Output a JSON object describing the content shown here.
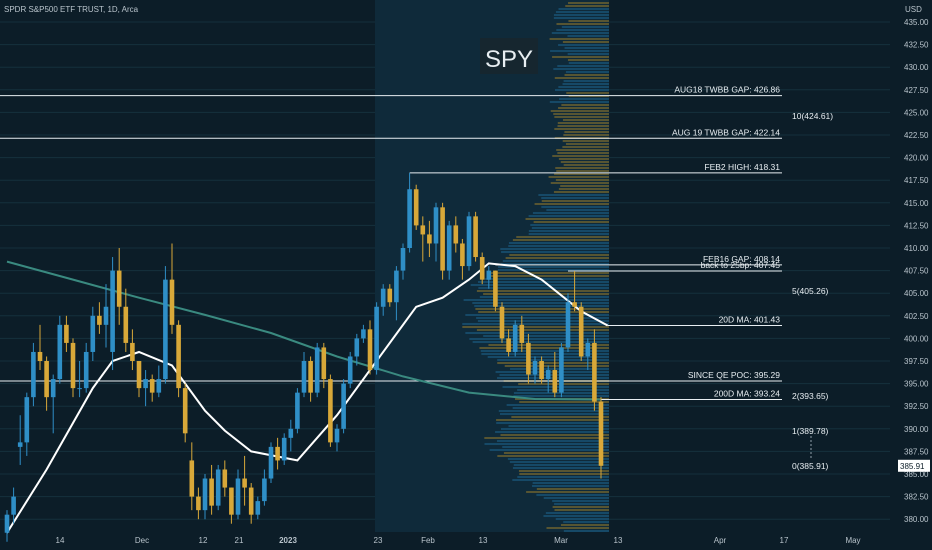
{
  "header": {
    "title": "SPDR S&P500 ETF TRUST, 1D, Arca"
  },
  "watermark": "SPY",
  "chart_data": {
    "type": "candlestick",
    "title": "SPDR S&P500 ETF TRUST, 1D, Arca",
    "currency": "USD",
    "ylim": [
      378,
      436
    ],
    "y_ticks": [
      "435.00",
      "432.50",
      "430.00",
      "427.50",
      "425.00",
      "422.50",
      "420.00",
      "417.50",
      "415.00",
      "412.50",
      "410.00",
      "407.50",
      "405.00",
      "402.50",
      "400.00",
      "397.50",
      "395.00",
      "392.50",
      "390.00",
      "387.50",
      "385.00",
      "382.50",
      "380.00"
    ],
    "x_ticks": [
      "14",
      "Dec",
      "12",
      "21",
      "2023",
      "23",
      "Feb",
      "13",
      "Mar",
      "13",
      "Apr",
      "17",
      "May"
    ],
    "last_price_badge": "385.91",
    "candles": [
      {
        "o": 378.5,
        "h": 381,
        "l": 377.5,
        "c": 380.5
      },
      {
        "o": 380.5,
        "h": 383.5,
        "l": 379.5,
        "c": 382.5
      },
      {
        "o": 388,
        "h": 391.5,
        "l": 386,
        "c": 388.5
      },
      {
        "o": 388.5,
        "h": 394,
        "l": 387,
        "c": 393.5
      },
      {
        "o": 393.5,
        "h": 399.5,
        "l": 392.5,
        "c": 398.5
      },
      {
        "o": 398.5,
        "h": 401.5,
        "l": 396.5,
        "c": 397.5
      },
      {
        "o": 397.5,
        "h": 398,
        "l": 392,
        "c": 393.5
      },
      {
        "o": 393.5,
        "h": 396,
        "l": 389.5,
        "c": 395.5
      },
      {
        "o": 395.5,
        "h": 402.5,
        "l": 395,
        "c": 401.5
      },
      {
        "o": 401.5,
        "h": 402.5,
        "l": 398.5,
        "c": 399.5
      },
      {
        "o": 399.5,
        "h": 400,
        "l": 393.5,
        "c": 394.5
      },
      {
        "o": 394.5,
        "h": 397.5,
        "l": 393.5,
        "c": 394.5
      },
      {
        "o": 394.5,
        "h": 399.5,
        "l": 394,
        "c": 398.5
      },
      {
        "o": 398.5,
        "h": 403.5,
        "l": 397.5,
        "c": 402.5
      },
      {
        "o": 402.5,
        "h": 404,
        "l": 400.5,
        "c": 401.5
      },
      {
        "o": 401.5,
        "h": 406,
        "l": 399,
        "c": 403.5
      },
      {
        "o": 398.5,
        "h": 409,
        "l": 396.5,
        "c": 407.5
      },
      {
        "o": 407.5,
        "h": 410,
        "l": 401.5,
        "c": 403.5
      },
      {
        "o": 403.5,
        "h": 405.5,
        "l": 398.5,
        "c": 399.5
      },
      {
        "o": 399.5,
        "h": 401,
        "l": 396.5,
        "c": 397.5
      },
      {
        "o": 397.5,
        "h": 397.5,
        "l": 393.5,
        "c": 394.5
      },
      {
        "o": 394.5,
        "h": 396.5,
        "l": 392.5,
        "c": 395.5
      },
      {
        "o": 395.5,
        "h": 396,
        "l": 393,
        "c": 394
      },
      {
        "o": 394,
        "h": 397,
        "l": 393.5,
        "c": 395.5
      },
      {
        "o": 395.5,
        "h": 408,
        "l": 395,
        "c": 406.5
      },
      {
        "o": 406.5,
        "h": 410.5,
        "l": 400.5,
        "c": 401.5
      },
      {
        "o": 401.5,
        "h": 402,
        "l": 393.5,
        "c": 394.5
      },
      {
        "o": 394.5,
        "h": 395,
        "l": 388.5,
        "c": 389.5
      },
      {
        "o": 386.5,
        "h": 388.5,
        "l": 381,
        "c": 382.5
      },
      {
        "o": 382.5,
        "h": 383.5,
        "l": 380,
        "c": 381
      },
      {
        "o": 381,
        "h": 385,
        "l": 380,
        "c": 384.5
      },
      {
        "o": 384.5,
        "h": 386,
        "l": 380.5,
        "c": 381.5
      },
      {
        "o": 381.5,
        "h": 386,
        "l": 381,
        "c": 385.5
      },
      {
        "o": 385.5,
        "h": 386.5,
        "l": 382.5,
        "c": 383.5
      },
      {
        "o": 383.5,
        "h": 383.5,
        "l": 379.5,
        "c": 380.5
      },
      {
        "o": 380.5,
        "h": 385.5,
        "l": 380,
        "c": 384.5
      },
      {
        "o": 384.5,
        "h": 387,
        "l": 381.5,
        "c": 383.5
      },
      {
        "o": 383.5,
        "h": 384,
        "l": 379.5,
        "c": 380.5
      },
      {
        "o": 380.5,
        "h": 382.5,
        "l": 380,
        "c": 382
      },
      {
        "o": 382,
        "h": 385.5,
        "l": 381.5,
        "c": 384.5
      },
      {
        "o": 384.5,
        "h": 388.5,
        "l": 384,
        "c": 388
      },
      {
        "o": 388,
        "h": 389,
        "l": 385.5,
        "c": 386.5
      },
      {
        "o": 386.5,
        "h": 389.5,
        "l": 386,
        "c": 389
      },
      {
        "o": 389,
        "h": 391,
        "l": 387.5,
        "c": 390
      },
      {
        "o": 390,
        "h": 394.5,
        "l": 389.5,
        "c": 394
      },
      {
        "o": 394,
        "h": 398.5,
        "l": 393.5,
        "c": 397.5
      },
      {
        "o": 397.5,
        "h": 398,
        "l": 393,
        "c": 394
      },
      {
        "o": 394,
        "h": 399.5,
        "l": 393.5,
        "c": 399
      },
      {
        "o": 399,
        "h": 399.5,
        "l": 394.5,
        "c": 395.5
      },
      {
        "o": 395.5,
        "h": 396,
        "l": 388,
        "c": 388.5
      },
      {
        "o": 388.5,
        "h": 390.5,
        "l": 387.5,
        "c": 390
      },
      {
        "o": 390,
        "h": 395.5,
        "l": 389.5,
        "c": 395
      },
      {
        "o": 395,
        "h": 398.5,
        "l": 394.5,
        "c": 398
      },
      {
        "o": 398,
        "h": 400.5,
        "l": 397,
        "c": 400
      },
      {
        "o": 400,
        "h": 401.5,
        "l": 399.5,
        "c": 401
      },
      {
        "o": 401,
        "h": 402,
        "l": 396,
        "c": 396.5
      },
      {
        "o": 396.5,
        "h": 404,
        "l": 396,
        "c": 403.5
      },
      {
        "o": 403.5,
        "h": 406,
        "l": 402.5,
        "c": 405.5
      },
      {
        "o": 405.5,
        "h": 406,
        "l": 403.5,
        "c": 404
      },
      {
        "o": 404,
        "h": 408,
        "l": 402,
        "c": 407.5
      },
      {
        "o": 407.5,
        "h": 410.5,
        "l": 406.5,
        "c": 410
      },
      {
        "o": 410,
        "h": 418.31,
        "l": 409.5,
        "c": 416.5
      },
      {
        "o": 416.5,
        "h": 417,
        "l": 412,
        "c": 412.5
      },
      {
        "o": 412.5,
        "h": 413.5,
        "l": 408.5,
        "c": 411.5
      },
      {
        "o": 411.5,
        "h": 413,
        "l": 409,
        "c": 410.5
      },
      {
        "o": 410.5,
        "h": 415,
        "l": 408.5,
        "c": 414.5
      },
      {
        "o": 414.5,
        "h": 415,
        "l": 406.5,
        "c": 407.5
      },
      {
        "o": 407.5,
        "h": 413,
        "l": 406.5,
        "c": 412.5
      },
      {
        "o": 412.5,
        "h": 413.5,
        "l": 409.5,
        "c": 410.5
      },
      {
        "o": 410.5,
        "h": 411,
        "l": 406.5,
        "c": 408
      },
      {
        "o": 408,
        "h": 414,
        "l": 407.5,
        "c": 413.5
      },
      {
        "o": 413.5,
        "h": 414,
        "l": 408.5,
        "c": 409
      },
      {
        "o": 409,
        "h": 409.5,
        "l": 406,
        "c": 406.5
      },
      {
        "o": 406.5,
        "h": 408,
        "l": 405.5,
        "c": 407.5
      },
      {
        "o": 407.5,
        "h": 407.5,
        "l": 403,
        "c": 403.5
      },
      {
        "o": 403.5,
        "h": 404,
        "l": 399.5,
        "c": 400
      },
      {
        "o": 400,
        "h": 401,
        "l": 398,
        "c": 398.5
      },
      {
        "o": 398.5,
        "h": 402,
        "l": 398,
        "c": 401.5
      },
      {
        "o": 401.5,
        "h": 402.5,
        "l": 398.5,
        "c": 399.5
      },
      {
        "o": 399.5,
        "h": 400.5,
        "l": 395,
        "c": 396
      },
      {
        "o": 396,
        "h": 398,
        "l": 395,
        "c": 397.5
      },
      {
        "o": 397.5,
        "h": 398,
        "l": 395,
        "c": 395.5
      },
      {
        "o": 395.5,
        "h": 397,
        "l": 394,
        "c": 396.5
      },
      {
        "o": 396.5,
        "h": 398.5,
        "l": 393.5,
        "c": 394
      },
      {
        "o": 394,
        "h": 399.5,
        "l": 393.5,
        "c": 399
      },
      {
        "o": 399,
        "h": 405,
        "l": 398.5,
        "c": 404
      },
      {
        "o": 404,
        "h": 407.45,
        "l": 403,
        "c": 403.5
      },
      {
        "o": 403.5,
        "h": 404,
        "l": 397.5,
        "c": 398
      },
      {
        "o": 398,
        "h": 400,
        "l": 396.5,
        "c": 399.5
      },
      {
        "o": 399.5,
        "h": 401,
        "l": 392,
        "c": 393
      },
      {
        "o": 393,
        "h": 393.5,
        "l": 384.5,
        "c": 385.91
      }
    ],
    "ma200": [
      [
        0,
        408.5
      ],
      [
        10,
        406.5
      ],
      [
        20,
        404.5
      ],
      [
        30,
        402.6
      ],
      [
        40,
        400.6
      ],
      [
        50,
        398
      ],
      [
        60,
        395.8
      ],
      [
        70,
        394
      ],
      [
        80,
        393.3
      ],
      [
        90,
        393.24
      ]
    ],
    "ma20": [
      [
        0,
        378.5
      ],
      [
        6,
        385.5
      ],
      [
        13,
        394.5
      ],
      [
        16,
        397.5
      ],
      [
        20,
        398.5
      ],
      [
        25,
        397
      ],
      [
        30,
        392
      ],
      [
        33,
        389.8
      ],
      [
        37,
        387.5
      ],
      [
        44,
        386.5
      ],
      [
        50,
        391.5
      ],
      [
        55,
        396.5
      ],
      [
        59,
        400.5
      ],
      [
        62,
        403.5
      ],
      [
        66,
        404.5
      ],
      [
        70,
        406.5
      ],
      [
        73,
        408.3
      ],
      [
        77,
        408
      ],
      [
        81,
        406.5
      ],
      [
        87,
        403
      ],
      [
        91,
        401.43
      ]
    ],
    "levels": [
      {
        "label": "AUG18 TWBB GAP: 426.86",
        "value": 426.86,
        "from": 0
      },
      {
        "label": "AUG 19 TWBB GAP: 422.14",
        "value": 422.14,
        "from": 0
      },
      {
        "label": "FEB2 HIGH: 418.31",
        "value": 418.31,
        "from": 61
      },
      {
        "label": "FEB16 GAP: 408.14",
        "value": 408.14,
        "from": 74
      },
      {
        "label": "back to 25bp: 407.45",
        "value": 407.45,
        "from": 85
      },
      {
        "label": "20D MA: 401.43",
        "value": 401.43,
        "from": 91
      },
      {
        "label": "SINCE QE POC: 395.29",
        "value": 395.29,
        "from": 0
      },
      {
        "label": "200D MA: 393.24",
        "value": 393.24,
        "from": 88
      }
    ],
    "fib_labels": [
      {
        "label": "10(424.61)",
        "value": 424.61
      },
      {
        "label": "5(405.26)",
        "value": 405.26
      },
      {
        "label": "2(393.65)",
        "value": 393.65
      },
      {
        "label": "1(389.78)",
        "value": 389.78
      },
      {
        "label": "0(385.91)",
        "value": 385.91
      }
    ],
    "colors": {
      "up": "#2f8fc7",
      "down": "#d8a839",
      "ma20": "#ffffff",
      "ma200": "#3a8a80",
      "level": "#e8eef2",
      "profile_blue": "#1f6fa0",
      "profile_gold": "#b08a2a"
    }
  }
}
